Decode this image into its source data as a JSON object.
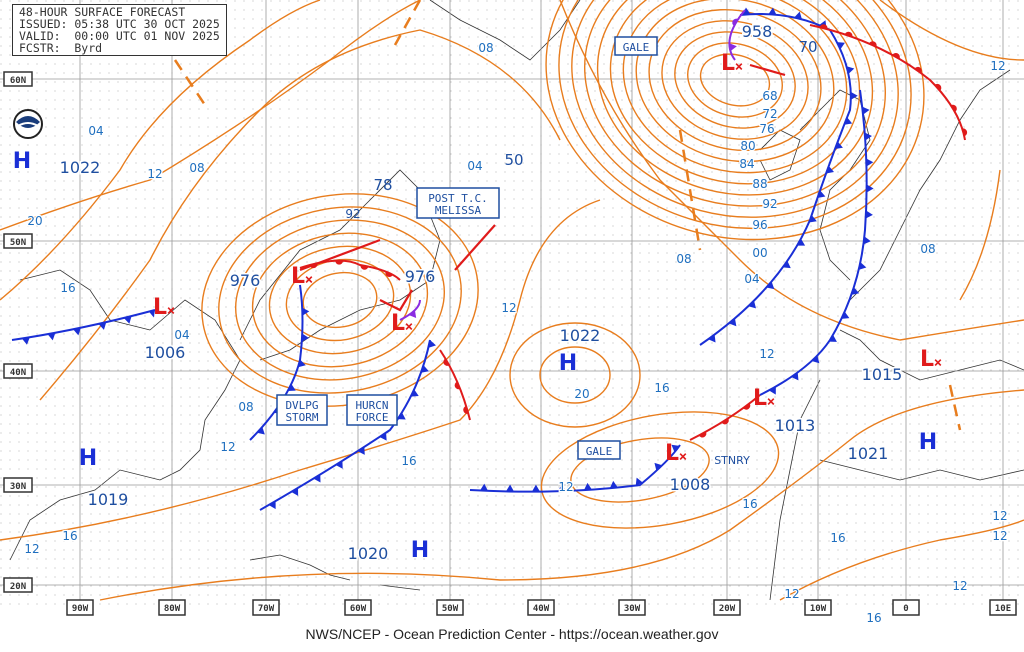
{
  "header": {
    "title": "48-HOUR SURFACE FORECAST",
    "issued": "ISSUED: 05:38 UTC 30 OCT 2025",
    "valid": "VALID:  00:00 UTC 01 NOV 2025",
    "forecaster": "FCSTR:  Byrd"
  },
  "credit": "NWS/NCEP - Ocean Prediction Center - https://ocean.weather.gov",
  "colors": {
    "isobar": "#e87d1e",
    "cold_front": "#1a2fd6",
    "warm_front": "#e01b1b",
    "occluded": "#8a2be2",
    "label_blue": "#1f6fbf",
    "grid": "#999999"
  },
  "longitude_labels": [
    "90W",
    "80W",
    "70W",
    "60W",
    "50W",
    "40W",
    "30W",
    "20W",
    "10W",
    "0",
    "10E"
  ],
  "latitude_labels": [
    "60N",
    "50N",
    "40N",
    "30N",
    "20N"
  ],
  "pressure_centers": [
    {
      "type": "H",
      "value": "1022"
    },
    {
      "type": "L",
      "value": "976"
    },
    {
      "type": "L",
      "value": "976"
    },
    {
      "type": "L",
      "value": "1006"
    },
    {
      "type": "H",
      "value": "1022"
    },
    {
      "type": "L",
      "value": "958"
    },
    {
      "type": "L",
      "value": "1008"
    },
    {
      "type": "L",
      "value": "1013"
    },
    {
      "type": "L",
      "value": "1015"
    },
    {
      "type": "H",
      "value": "1021"
    },
    {
      "type": "H",
      "value": "1019"
    },
    {
      "type": "H",
      "value": "1020"
    }
  ],
  "other_values": [
    "70",
    "78",
    "50",
    "92"
  ],
  "text_boxes": [
    {
      "lines": [
        "GALE"
      ]
    },
    {
      "lines": [
        "POST T.C.",
        "MELISSA"
      ]
    },
    {
      "lines": [
        "DVLPG",
        "STORM"
      ]
    },
    {
      "lines": [
        "HURCN",
        "FORCE"
      ]
    },
    {
      "lines": [
        "GALE"
      ]
    }
  ],
  "front_labels": [
    "STNRY"
  ],
  "isobar_labels": [
    "08",
    "04",
    "08",
    "12",
    "20",
    "16",
    "04",
    "08",
    "12",
    "16",
    "12",
    "04",
    "12",
    "08",
    "04",
    "00",
    "96",
    "92",
    "88",
    "84",
    "80",
    "76",
    "72",
    "68",
    "12",
    "08",
    "12",
    "20",
    "16",
    "16",
    "16",
    "12",
    "16",
    "12",
    "12",
    "16",
    "12",
    "12"
  ],
  "logo": "NOAA"
}
